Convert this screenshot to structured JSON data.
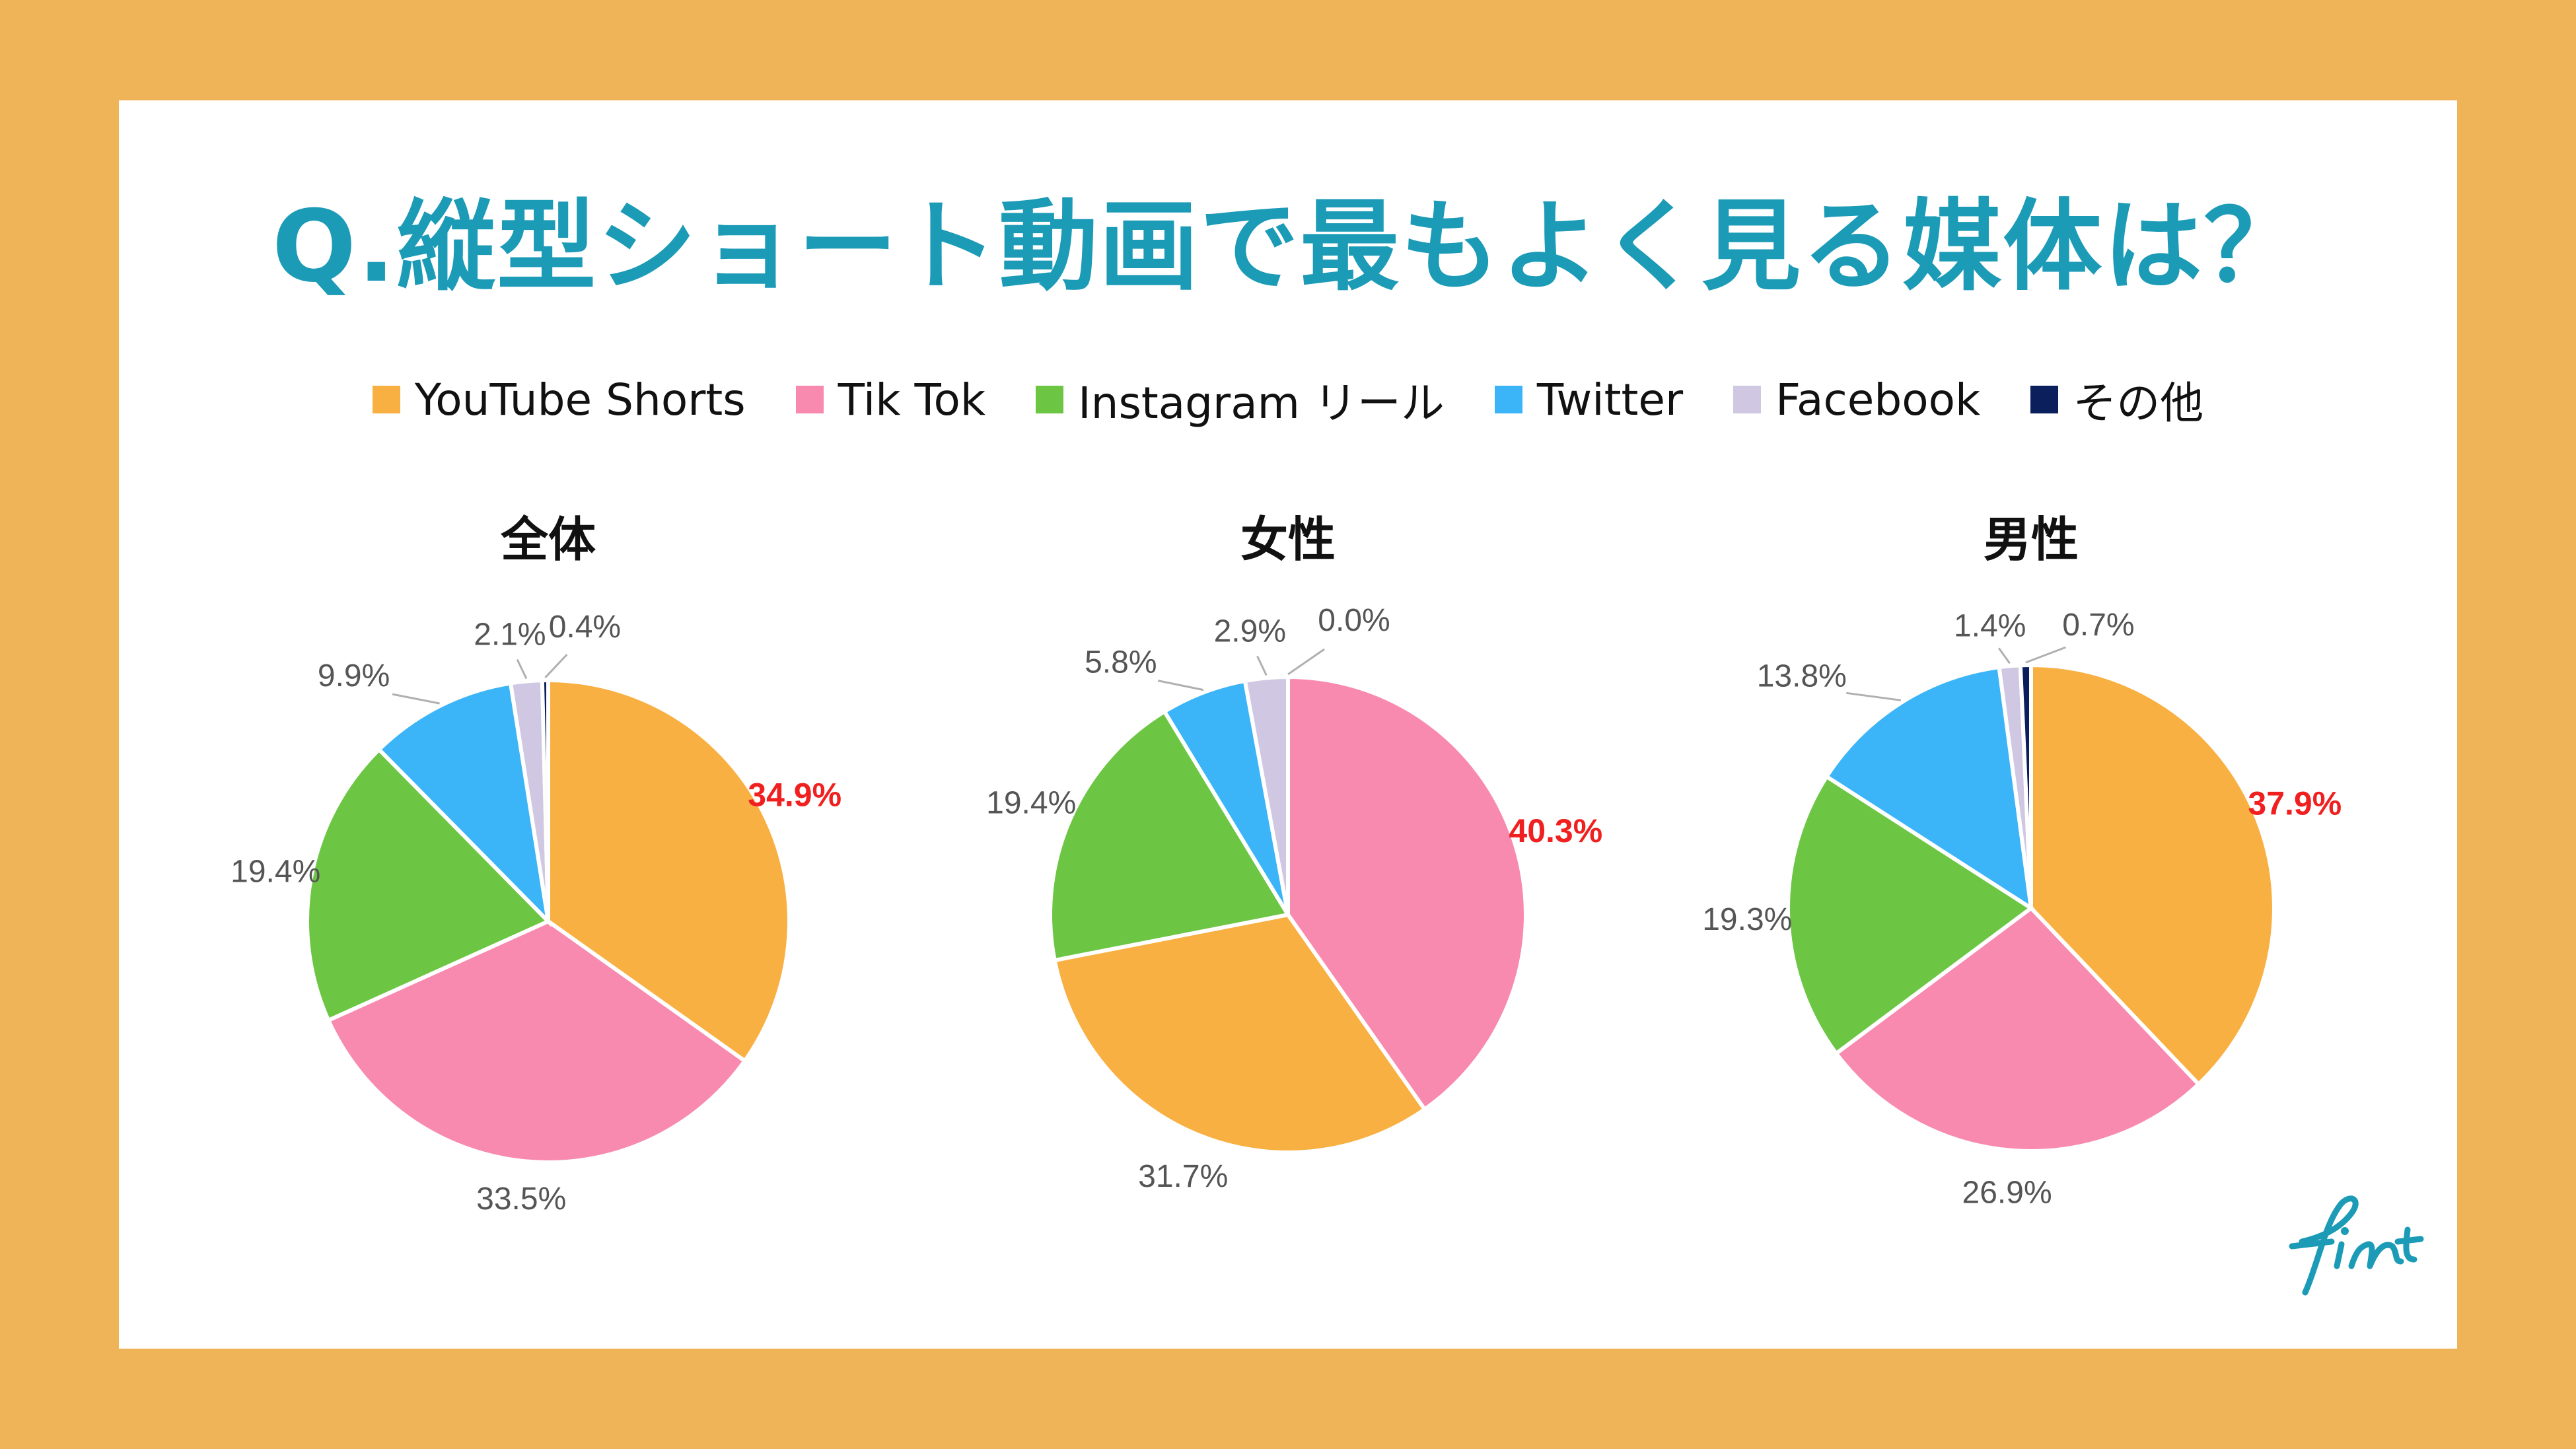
{
  "title": "Q.縦型ショート動画で最もよく見る媒体は？",
  "legend": [
    {
      "label": "YouTube Shorts",
      "color": "#F9B043"
    },
    {
      "label": "Tik Tok",
      "color": "#F88AAF"
    },
    {
      "label": "Instagram リール",
      "color": "#6CC644"
    },
    {
      "label": "Twitter",
      "color": "#3BB5F7"
    },
    {
      "label": "Facebook",
      "color": "#D0C8E2"
    },
    {
      "label": "その他",
      "color": "#0B1F5C"
    }
  ],
  "logo": "fint",
  "chart_data": [
    {
      "type": "pie",
      "title": "全体",
      "slices": [
        {
          "name": "YouTube Shorts",
          "value": 34.9,
          "label": "34.9%",
          "highlight": true
        },
        {
          "name": "Tik Tok",
          "value": 33.5,
          "label": "33.5%"
        },
        {
          "name": "Instagram リール",
          "value": 19.4,
          "label": "19.4%"
        },
        {
          "name": "Twitter",
          "value": 9.9,
          "label": "9.9%"
        },
        {
          "name": "Facebook",
          "value": 2.1,
          "label": "2.1%"
        },
        {
          "name": "その他",
          "value": 0.4,
          "label": "0.4%"
        }
      ]
    },
    {
      "type": "pie",
      "title": "女性",
      "slices": [
        {
          "name": "Tik Tok",
          "value": 40.3,
          "label": "40.3%",
          "highlight": true
        },
        {
          "name": "YouTube Shorts",
          "value": 31.7,
          "label": "31.7%"
        },
        {
          "name": "Instagram リール",
          "value": 19.4,
          "label": "19.4%"
        },
        {
          "name": "Twitter",
          "value": 5.8,
          "label": "5.8%"
        },
        {
          "name": "Facebook",
          "value": 2.9,
          "label": "2.9%"
        },
        {
          "name": "その他",
          "value": 0.0,
          "label": "0.0%"
        }
      ]
    },
    {
      "type": "pie",
      "title": "男性",
      "slices": [
        {
          "name": "YouTube Shorts",
          "value": 37.9,
          "label": "37.9%",
          "highlight": true
        },
        {
          "name": "Tik Tok",
          "value": 26.9,
          "label": "26.9%"
        },
        {
          "name": "Instagram リール",
          "value": 19.3,
          "label": "19.3%"
        },
        {
          "name": "Twitter",
          "value": 13.8,
          "label": "13.8%"
        },
        {
          "name": "Facebook",
          "value": 1.4,
          "label": "1.4%"
        },
        {
          "name": "その他",
          "value": 0.7,
          "label": "0.7%"
        }
      ]
    }
  ]
}
